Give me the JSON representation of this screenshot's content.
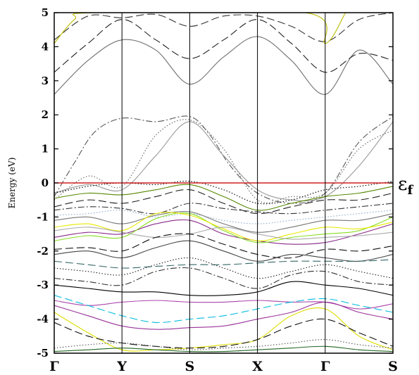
{
  "chart_data": {
    "type": "line",
    "title": "",
    "ylabel": "Energy (eV)",
    "xlabel": "",
    "ylim": [
      -5,
      5
    ],
    "yticks": [
      -5,
      -4,
      -3,
      -2,
      -1,
      0,
      1,
      2,
      3,
      4,
      5
    ],
    "kpoints": [
      {
        "label": "Γ",
        "pos": 0
      },
      {
        "label": "Y",
        "pos": 1
      },
      {
        "label": "S",
        "pos": 2
      },
      {
        "label": "X",
        "pos": 3
      },
      {
        "label": "Γ",
        "pos": 4
      },
      {
        "label": "S",
        "pos": 5
      }
    ],
    "fermi": {
      "label_main": "ε",
      "label_sub": "f",
      "energy": 0,
      "color": "#d02020"
    },
    "grid": false,
    "series": [
      {
        "color": "#707070",
        "dash": "solid",
        "x": [
          0,
          0.5,
          1,
          1.5,
          2,
          2.5,
          3,
          3.5,
          4,
          4.5,
          5
        ],
        "y": [
          2.6,
          3.6,
          4.2,
          3.9,
          2.9,
          3.7,
          4.3,
          3.6,
          2.6,
          3.9,
          2.9
        ]
      },
      {
        "color": "#222222",
        "dash": "longdash",
        "x": [
          0,
          0.5,
          1,
          1.5,
          2,
          2.5,
          3,
          3.5,
          4,
          4.5,
          5
        ],
        "y": [
          3.25,
          4.1,
          4.8,
          4.2,
          3.65,
          4.2,
          4.8,
          4.1,
          3.25,
          3.8,
          3.6
        ]
      },
      {
        "color": "#333333",
        "dash": "longdash",
        "x": [
          0,
          0.5,
          1,
          1.5,
          2,
          2.5,
          3,
          3.5,
          4,
          4.5,
          5
        ],
        "y": [
          4.2,
          4.9,
          4.85,
          4.95,
          4.6,
          4.9,
          4.9,
          4.6,
          4.15,
          4.8,
          5.0
        ]
      },
      {
        "color": "#bbbb00",
        "dash": "solid",
        "x": [
          0,
          0.3,
          0.6,
          3.7,
          4,
          4.3
        ],
        "y": [
          4.1,
          4.8,
          5.0,
          5.0,
          4.1,
          5.0
        ]
      },
      {
        "color": "#555555",
        "dash": "dashdot",
        "x": [
          0,
          0.3,
          0.6,
          1,
          1.5,
          2,
          2.3,
          2.6,
          3,
          3.5,
          4,
          4.5,
          5
        ],
        "y": [
          -0.4,
          0.6,
          1.5,
          1.9,
          1.8,
          1.95,
          1.4,
          0.5,
          -0.3,
          -0.6,
          -0.3,
          1.2,
          1.95
        ]
      },
      {
        "color": "#666666",
        "dash": "dotted",
        "x": [
          0,
          0.5,
          1,
          1.5,
          2,
          2.5,
          3,
          3.5,
          4,
          4.5,
          5
        ],
        "y": [
          -0.5,
          0.2,
          -0.1,
          1.4,
          1.85,
          1.0,
          -0.5,
          -0.4,
          -0.3,
          1.0,
          1.55
        ]
      },
      {
        "color": "#999999",
        "dash": "solid",
        "x": [
          0,
          0.5,
          1,
          1.5,
          2,
          2.5,
          3,
          3.5,
          4,
          4.5,
          5
        ],
        "y": [
          -0.3,
          -0.05,
          -0.2,
          0.8,
          1.8,
          0.8,
          -0.2,
          -0.5,
          -0.4,
          0.5,
          1.8
        ]
      },
      {
        "color": "#000000",
        "dash": "dotted",
        "x": [
          0,
          0.5,
          1,
          1.5,
          2,
          2.5,
          3,
          3.5,
          4,
          4.5,
          5
        ],
        "y": [
          -0.3,
          -0.1,
          0.0,
          -0.05,
          0.05,
          -0.2,
          -0.6,
          -0.5,
          -0.2,
          -0.1,
          0.05
        ]
      },
      {
        "color": "#558800",
        "dash": "solid",
        "x": [
          0,
          0.5,
          1,
          1.5,
          2,
          2.5,
          3,
          3.5,
          4,
          4.5,
          5
        ],
        "y": [
          -0.45,
          -0.3,
          -0.35,
          -0.2,
          -0.05,
          -0.4,
          -0.8,
          -0.6,
          -0.4,
          -0.3,
          -0.1
        ]
      },
      {
        "color": "#222222",
        "dash": "longdash",
        "x": [
          0,
          0.5,
          1,
          1.5,
          2,
          2.5,
          3,
          3.5,
          4,
          4.5,
          5
        ],
        "y": [
          -0.7,
          -0.5,
          -0.6,
          -0.4,
          -0.2,
          -0.6,
          -0.9,
          -0.7,
          -0.5,
          -0.5,
          -0.3
        ]
      },
      {
        "color": "#333333",
        "dash": "dashdot",
        "x": [
          0,
          0.5,
          1,
          1.5,
          2,
          2.5,
          3,
          3.5,
          4,
          4.5,
          5
        ],
        "y": [
          -0.8,
          -0.7,
          -0.75,
          -0.9,
          -0.6,
          -0.75,
          -0.85,
          -0.9,
          -0.8,
          -0.7,
          -0.6
        ]
      },
      {
        "color": "#88aacc",
        "dash": "dotted",
        "x": [
          0,
          0.5,
          1,
          1.5,
          2,
          2.5,
          3,
          3.5,
          4,
          4.5,
          5
        ],
        "y": [
          -0.95,
          -0.9,
          -0.8,
          -1.0,
          -0.9,
          -1.1,
          -1.2,
          -1.1,
          -1.0,
          -0.9,
          -0.8
        ]
      },
      {
        "color": "#777777",
        "dash": "solid",
        "x": [
          0,
          0.5,
          1,
          1.5,
          2,
          2.5,
          3,
          3.5,
          4,
          4.5,
          5
        ],
        "y": [
          -1.1,
          -1.0,
          -1.2,
          -0.95,
          -0.85,
          -1.2,
          -1.45,
          -1.3,
          -1.1,
          -1.1,
          -0.9
        ]
      },
      {
        "color": "#8a2a8a",
        "dash": "solid",
        "x": [
          0,
          0.5,
          1,
          1.5,
          2,
          2.5,
          3,
          3.5,
          4,
          4.5,
          5
        ],
        "y": [
          -1.6,
          -1.45,
          -1.5,
          -1.2,
          -1.1,
          -1.5,
          -1.7,
          -1.8,
          -1.75,
          -1.5,
          -1.2
        ]
      },
      {
        "color": "#88dd22",
        "dash": "solid",
        "x": [
          0,
          0.5,
          1,
          1.5,
          2,
          2.5,
          3,
          3.5,
          4,
          4.5,
          5
        ],
        "y": [
          -1.7,
          -1.55,
          -1.6,
          -1.05,
          -0.9,
          -1.4,
          -1.75,
          -1.6,
          -1.5,
          -1.4,
          -1.0
        ]
      },
      {
        "color": "#e8e800",
        "dash": "solid",
        "x": [
          0,
          0.5,
          1,
          1.5,
          2,
          2.5,
          3,
          3.5,
          4,
          4.5,
          5
        ],
        "y": [
          -1.3,
          -1.2,
          -1.4,
          -0.9,
          -0.95,
          -1.35,
          -1.7,
          -1.5,
          -1.3,
          -1.35,
          -1.15
        ]
      },
      {
        "color": "#aaaaaa",
        "dash": "solid",
        "x": [
          0,
          0.5,
          1,
          1.5,
          2,
          2.5,
          3,
          3.5,
          4,
          4.5,
          5
        ],
        "y": [
          -1.4,
          -1.3,
          -1.45,
          -1.6,
          -1.5,
          -1.3,
          -1.5,
          -1.65,
          -1.6,
          -1.55,
          -1.45
        ]
      },
      {
        "color": "#111111",
        "dash": "longdash",
        "x": [
          0,
          0.5,
          1,
          1.5,
          2,
          2.5,
          3,
          3.5,
          4,
          4.5,
          5
        ],
        "y": [
          -1.95,
          -1.9,
          -2.0,
          -1.6,
          -1.5,
          -1.8,
          -2.1,
          -2.2,
          -1.95,
          -2.0,
          -1.85
        ]
      },
      {
        "color": "#444444",
        "dash": "solid",
        "x": [
          0,
          0.5,
          1,
          1.5,
          2,
          2.5,
          3,
          3.5,
          4,
          4.5,
          5
        ],
        "y": [
          -2.1,
          -2.0,
          -2.2,
          -1.9,
          -1.7,
          -2.0,
          -2.3,
          -2.1,
          -2.2,
          -2.3,
          -2.1
        ]
      },
      {
        "color": "#336666",
        "dash": "longdash",
        "x": [
          0,
          0.5,
          1,
          1.5,
          2,
          2.5,
          3,
          3.5,
          4,
          4.5,
          5
        ],
        "y": [
          -2.3,
          -2.4,
          -2.5,
          -2.45,
          -2.4,
          -2.4,
          -2.35,
          -2.3,
          -2.3,
          -2.3,
          -2.25
        ]
      },
      {
        "color": "#222222",
        "dash": "dotted",
        "x": [
          0,
          0.5,
          1,
          1.5,
          2,
          2.5,
          3,
          3.5,
          4,
          4.5,
          5
        ],
        "y": [
          -2.5,
          -2.6,
          -2.7,
          -2.4,
          -2.2,
          -2.5,
          -2.8,
          -2.6,
          -2.4,
          -2.6,
          -2.8
        ]
      },
      {
        "color": "#333333",
        "dash": "dashdot",
        "x": [
          0,
          0.5,
          1,
          1.5,
          2,
          2.5,
          3,
          3.5,
          4,
          4.5,
          5
        ],
        "y": [
          -2.8,
          -2.9,
          -3.0,
          -2.6,
          -2.5,
          -2.8,
          -3.1,
          -2.7,
          -2.6,
          -2.9,
          -3.0
        ]
      },
      {
        "color": "#000000",
        "dash": "solid",
        "x": [
          0,
          0.5,
          1,
          1.5,
          2,
          2.5,
          3,
          3.5,
          4,
          4.5,
          5
        ],
        "y": [
          -3.0,
          -3.1,
          -3.2,
          -3.2,
          -3.3,
          -3.3,
          -3.2,
          -2.9,
          -3.0,
          -3.1,
          -3.3
        ]
      },
      {
        "color": "#aa44aa",
        "dash": "solid",
        "x": [
          0,
          0.5,
          1,
          1.5,
          2,
          2.5,
          3,
          3.5,
          4,
          4.5,
          5
        ],
        "y": [
          -3.45,
          -3.6,
          -3.5,
          -3.45,
          -3.5,
          -3.5,
          -3.45,
          -3.5,
          -3.5,
          -3.7,
          -3.55
        ]
      },
      {
        "color": "#00bbdd",
        "dash": "longdash",
        "x": [
          0,
          0.5,
          1,
          1.5,
          2,
          2.5,
          3,
          3.5,
          4,
          4.5,
          5
        ],
        "y": [
          -3.3,
          -3.6,
          -3.9,
          -4.1,
          -4.0,
          -3.9,
          -3.7,
          -3.5,
          -3.4,
          -3.6,
          -3.8
        ]
      },
      {
        "color": "#993399",
        "dash": "solid",
        "x": [
          0,
          0.5,
          1,
          1.5,
          2,
          2.5,
          3,
          3.5,
          4,
          4.5,
          5
        ],
        "y": [
          -3.6,
          -3.9,
          -4.2,
          -4.3,
          -4.25,
          -4.2,
          -4.0,
          -3.8,
          -3.5,
          -3.8,
          -4.0
        ]
      },
      {
        "color": "#dddd00",
        "dash": "solid",
        "x": [
          0,
          0.5,
          1,
          1.5,
          2,
          2.5,
          3,
          3.5,
          4,
          4.5,
          5
        ],
        "y": [
          -3.8,
          -4.4,
          -4.9,
          -4.9,
          -4.85,
          -4.75,
          -4.6,
          -3.9,
          -3.7,
          -4.5,
          -4.9
        ]
      },
      {
        "color": "#111111",
        "dash": "longdash",
        "x": [
          0,
          0.5,
          1,
          1.5,
          2,
          2.5,
          3,
          3.5,
          4,
          4.5,
          5
        ],
        "y": [
          -4.1,
          -4.5,
          -4.7,
          -4.8,
          -4.85,
          -4.8,
          -4.6,
          -4.2,
          -4.0,
          -4.4,
          -4.8
        ]
      },
      {
        "color": "#555555",
        "dash": "dotted",
        "x": [
          0,
          0.5,
          1,
          1.5,
          2,
          2.5,
          3,
          3.5,
          4,
          4.5,
          5
        ],
        "y": [
          -4.85,
          -4.75,
          -4.7,
          -4.8,
          -4.9,
          -4.85,
          -4.8,
          -4.7,
          -4.6,
          -4.75,
          -4.85
        ]
      },
      {
        "color": "#226622",
        "dash": "solid",
        "x": [
          0,
          0.5,
          1,
          1.5,
          2,
          2.5,
          3,
          3.5,
          4,
          4.5,
          5
        ],
        "y": [
          -4.95,
          -4.9,
          -4.85,
          -4.9,
          -4.95,
          -4.95,
          -4.9,
          -4.85,
          -4.8,
          -4.9,
          -4.95
        ]
      }
    ]
  }
}
